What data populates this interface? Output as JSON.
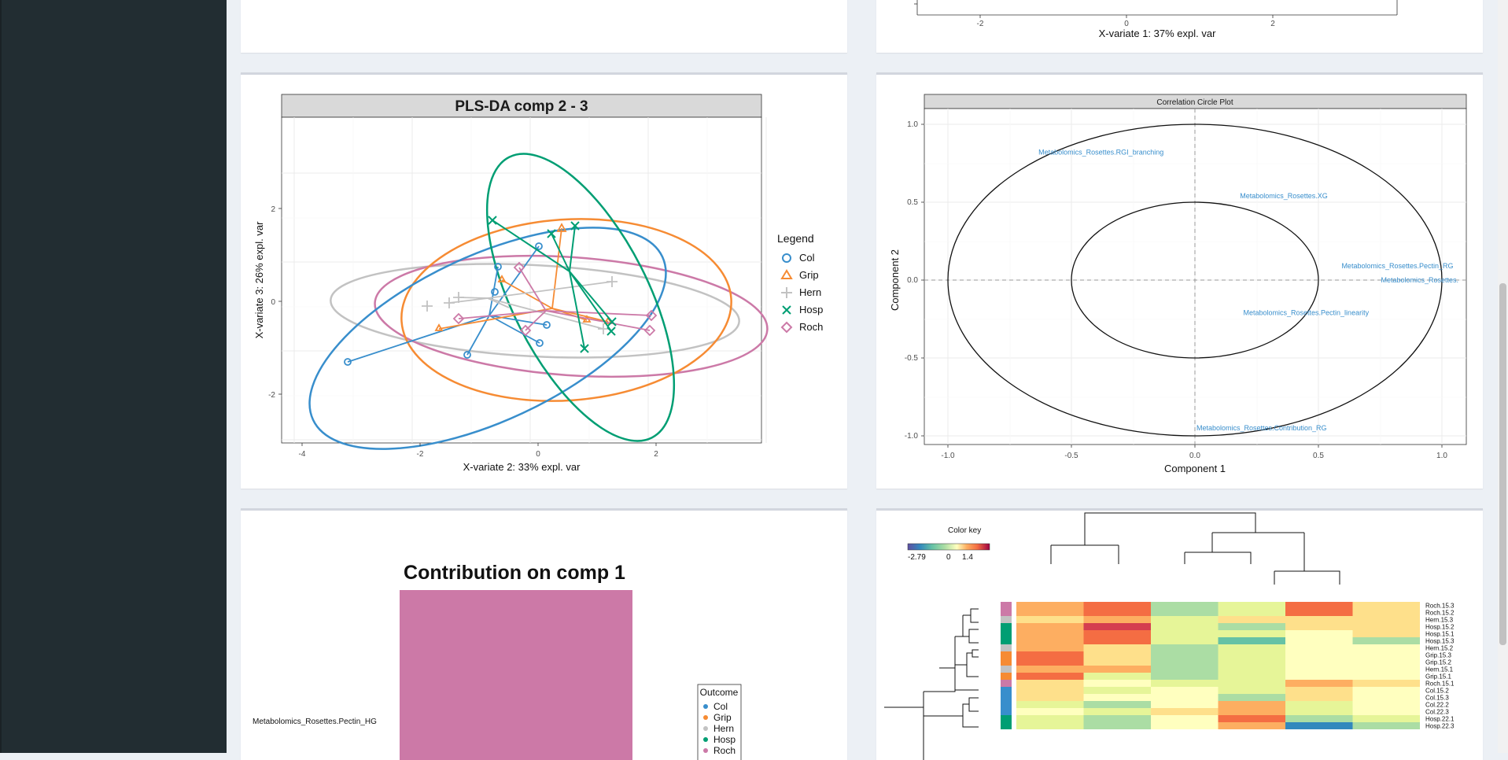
{
  "colors": {
    "sidebar": "#222d32",
    "background": "#ecf0f5",
    "Col": "#388ecc",
    "Grip": "#f68b33",
    "Hern": "#c2c2c2",
    "Hosp": "#009e73",
    "Roch": "#cc79a7"
  },
  "top_right_plot": {
    "xlabel": "X-variate 1: 37% expl. var",
    "ticks": [
      "-2",
      "0",
      "2"
    ]
  },
  "plsda_plot": {
    "title": "PLS-DA comp 2 - 3",
    "xlabel": "X-variate 2: 33% expl. var",
    "ylabel": "X-variate 3: 26% expl. var",
    "xticks": [
      "-4",
      "-2",
      "0",
      "2"
    ],
    "yticks": [
      "2",
      "0",
      "-2"
    ],
    "legend_title": "Legend",
    "legend": [
      {
        "label": "Col",
        "icon": "circle-icon"
      },
      {
        "label": "Grip",
        "icon": "triangle-icon"
      },
      {
        "label": "Hern",
        "icon": "plus-icon"
      },
      {
        "label": "Hosp",
        "icon": "cross-icon"
      },
      {
        "label": "Roch",
        "icon": "diamond-icon"
      }
    ]
  },
  "correlation_circle": {
    "title": "Correlation Circle Plot",
    "xlabel": "Component  1",
    "ylabel": "Component  2",
    "xticks": [
      "-1.0",
      "-0.5",
      "0.0",
      "0.5",
      "1.0"
    ],
    "yticks": [
      "1.0",
      "0.5",
      "0.0",
      "-0.5",
      "-1.0"
    ],
    "variables": [
      {
        "label": "Metabolomics_Rosettes.RGI_branching",
        "x": -0.38,
        "y": 0.82
      },
      {
        "label": "Metabolomics_Rosettes.XG",
        "x": 0.36,
        "y": 0.54
      },
      {
        "label": "Metabolomics_Rosettes.Pectin_RG",
        "x": 0.82,
        "y": 0.09
      },
      {
        "label": "Metabolomics_Rosettes.",
        "x": 0.91,
        "y": 0.0
      },
      {
        "label": "Metabolomics_Rosettes.Pectin_linearity",
        "x": 0.45,
        "y": -0.21
      },
      {
        "label": "Metabolomics_Rosettes.Contribution_RG",
        "x": 0.27,
        "y": -0.95
      }
    ]
  },
  "contribution_plot": {
    "title": "Contribution on comp 1",
    "variable_label": "Metabolomics_Rosettes.Pectin_HG",
    "bar_color": "#cc79a7",
    "legend_title": "Outcome",
    "legend": [
      "Col",
      "Grip",
      "Hern",
      "Hosp",
      "Roch"
    ]
  },
  "heatmap": {
    "color_key_title": "Color key",
    "color_key_ticks": [
      "-2.79",
      "0",
      "1.4"
    ],
    "row_labels": [
      "Roch.15.3",
      "Roch.15.2",
      "Hern.15.3",
      "Hosp.15.2",
      "Hosp.15.1",
      "Hosp.15.3",
      "Hern.15.2",
      "Grip.15.3",
      "Grip.15.2",
      "Hern.15.1",
      "Grip.15.1",
      "Roch.15.1",
      "Col.15.2",
      "Col.15.3",
      "Col.22.2",
      "Col.22.3",
      "Hosp.22.1",
      "Hosp.22.3"
    ]
  }
}
